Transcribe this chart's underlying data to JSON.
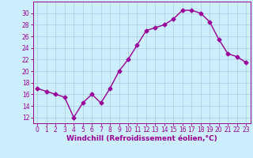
{
  "x": [
    0,
    1,
    2,
    3,
    4,
    5,
    6,
    7,
    8,
    9,
    10,
    11,
    12,
    13,
    14,
    15,
    16,
    17,
    18,
    19,
    20,
    21,
    22,
    23
  ],
  "y": [
    17,
    16.5,
    16,
    15.5,
    12,
    14.5,
    16,
    14.5,
    17,
    20,
    22,
    24.5,
    27,
    27.5,
    28,
    29,
    30.5,
    30.5,
    30,
    28.5,
    25.5,
    23,
    22.5,
    21.5
  ],
  "line_color": "#990099",
  "marker": "D",
  "markersize": 2.5,
  "linewidth": 1.0,
  "background_color": "#cceeff",
  "grid_color": "#aaccdd",
  "xlabel": "Windchill (Refroidissement éolien,°C)",
  "xlabel_color": "#990099",
  "xlabel_fontsize": 6.5,
  "tick_color": "#990099",
  "tick_fontsize": 5.5,
  "ylim": [
    11,
    32
  ],
  "xlim": [
    -0.5,
    23.5
  ],
  "yticks": [
    12,
    14,
    16,
    18,
    20,
    22,
    24,
    26,
    28,
    30
  ],
  "xticks": [
    0,
    1,
    2,
    3,
    4,
    5,
    6,
    7,
    8,
    9,
    10,
    11,
    12,
    13,
    14,
    15,
    16,
    17,
    18,
    19,
    20,
    21,
    22,
    23
  ]
}
